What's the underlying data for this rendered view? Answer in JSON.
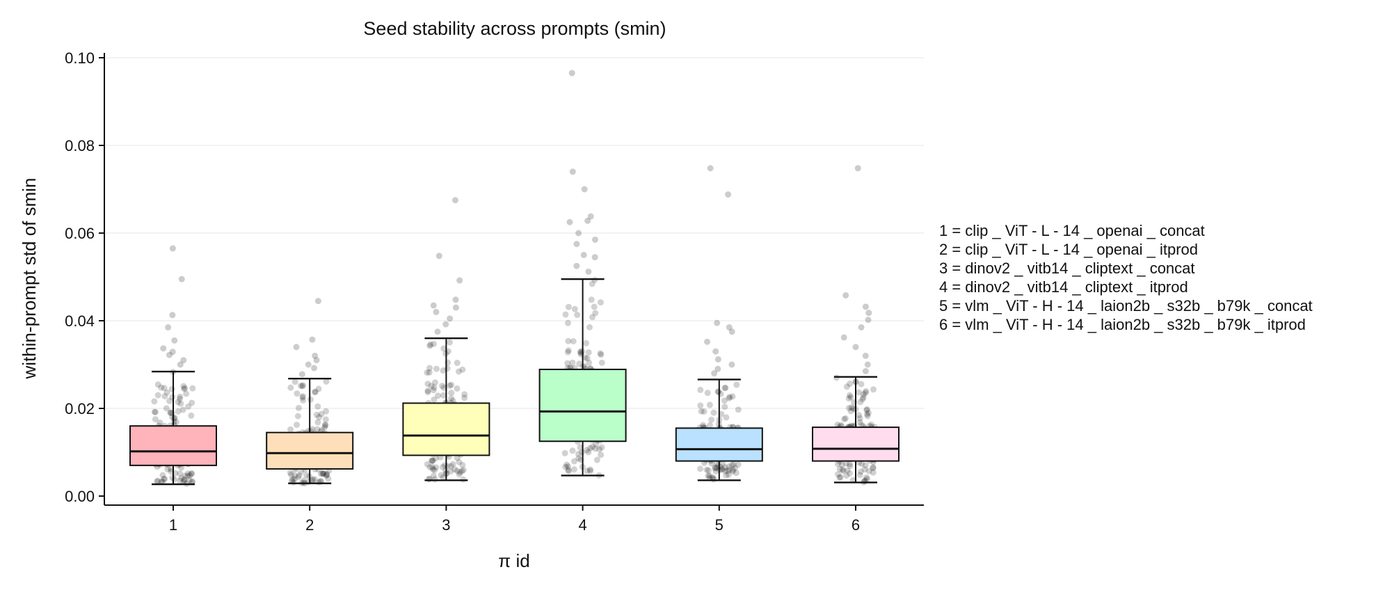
{
  "chart_data": {
    "type": "box",
    "title": "Seed stability across prompts (smin)",
    "xlabel": "π id",
    "ylabel": "within-prompt std of smin",
    "categories": [
      "1",
      "2",
      "3",
      "4",
      "5",
      "6"
    ],
    "ylim": [
      -0.0018,
      0.101
    ],
    "yticks": [
      0.0,
      0.02,
      0.04,
      0.06,
      0.08,
      0.1
    ],
    "ytick_labels": [
      "0.00",
      "0.02",
      "0.04",
      "0.06",
      "0.08",
      "0.10"
    ],
    "grid": "horizontal",
    "boxes": [
      {
        "id": "1",
        "whisker_low": 0.0027,
        "q1": 0.007,
        "median": 0.0102,
        "q3": 0.016,
        "whisker_high": 0.0284,
        "color": "#ffb3ba",
        "outliers": [
          0.03,
          0.031,
          0.0322,
          0.0329,
          0.0337,
          0.0355,
          0.0385,
          0.0413,
          0.0495,
          0.0565
        ]
      },
      {
        "id": "2",
        "whisker_low": 0.0029,
        "q1": 0.0062,
        "median": 0.0098,
        "q3": 0.0145,
        "whisker_high": 0.0268,
        "color": "#ffdfba",
        "outliers": [
          0.0278,
          0.0292,
          0.03,
          0.031,
          0.032,
          0.034,
          0.0357,
          0.0445
        ]
      },
      {
        "id": "3",
        "whisker_low": 0.0036,
        "q1": 0.0093,
        "median": 0.0138,
        "q3": 0.0212,
        "whisker_high": 0.036,
        "color": "#ffffba",
        "outliers": [
          0.0375,
          0.0392,
          0.0405,
          0.042,
          0.043,
          0.0435,
          0.0448,
          0.0492,
          0.0548,
          0.0675
        ]
      },
      {
        "id": "4",
        "whisker_low": 0.0047,
        "q1": 0.0125,
        "median": 0.0193,
        "q3": 0.0289,
        "whisker_high": 0.0495,
        "color": "#baffc9",
        "outliers": [
          0.0512,
          0.0525,
          0.0545,
          0.055,
          0.0575,
          0.0585,
          0.06,
          0.0625,
          0.0628,
          0.0638,
          0.07,
          0.074,
          0.0965
        ]
      },
      {
        "id": "5",
        "whisker_low": 0.0036,
        "q1": 0.008,
        "median": 0.0107,
        "q3": 0.0155,
        "whisker_high": 0.0266,
        "color": "#bae1ff",
        "outliers": [
          0.028,
          0.029,
          0.03,
          0.0312,
          0.033,
          0.0352,
          0.0375,
          0.0385,
          0.0395,
          0.0688,
          0.0748
        ]
      },
      {
        "id": "6",
        "whisker_low": 0.0031,
        "q1": 0.008,
        "median": 0.0108,
        "q3": 0.0157,
        "whisker_high": 0.0272,
        "color": "#ffdcee",
        "outliers": [
          0.0285,
          0.03,
          0.032,
          0.034,
          0.0362,
          0.0385,
          0.0402,
          0.0418,
          0.0432,
          0.0458,
          0.0748
        ]
      }
    ],
    "legend": {
      "position": "right",
      "entries": [
        "1 = clip _ ViT - L - 14 _ openai _ concat",
        "2 = clip _ ViT - L - 14 _ openai _ itprod",
        "3 = dinov2 _ vitb14 _ cliptext _ concat",
        "4 = dinov2 _ vitb14 _ cliptext _ itprod",
        "5 = vlm _ ViT - H - 14 _ laion2b _ s32b _ b79k _ concat",
        "6 = vlm _ ViT - H - 14 _ laion2b _ s32b _ b79k _ itprod"
      ]
    },
    "point_color": "#000000"
  }
}
